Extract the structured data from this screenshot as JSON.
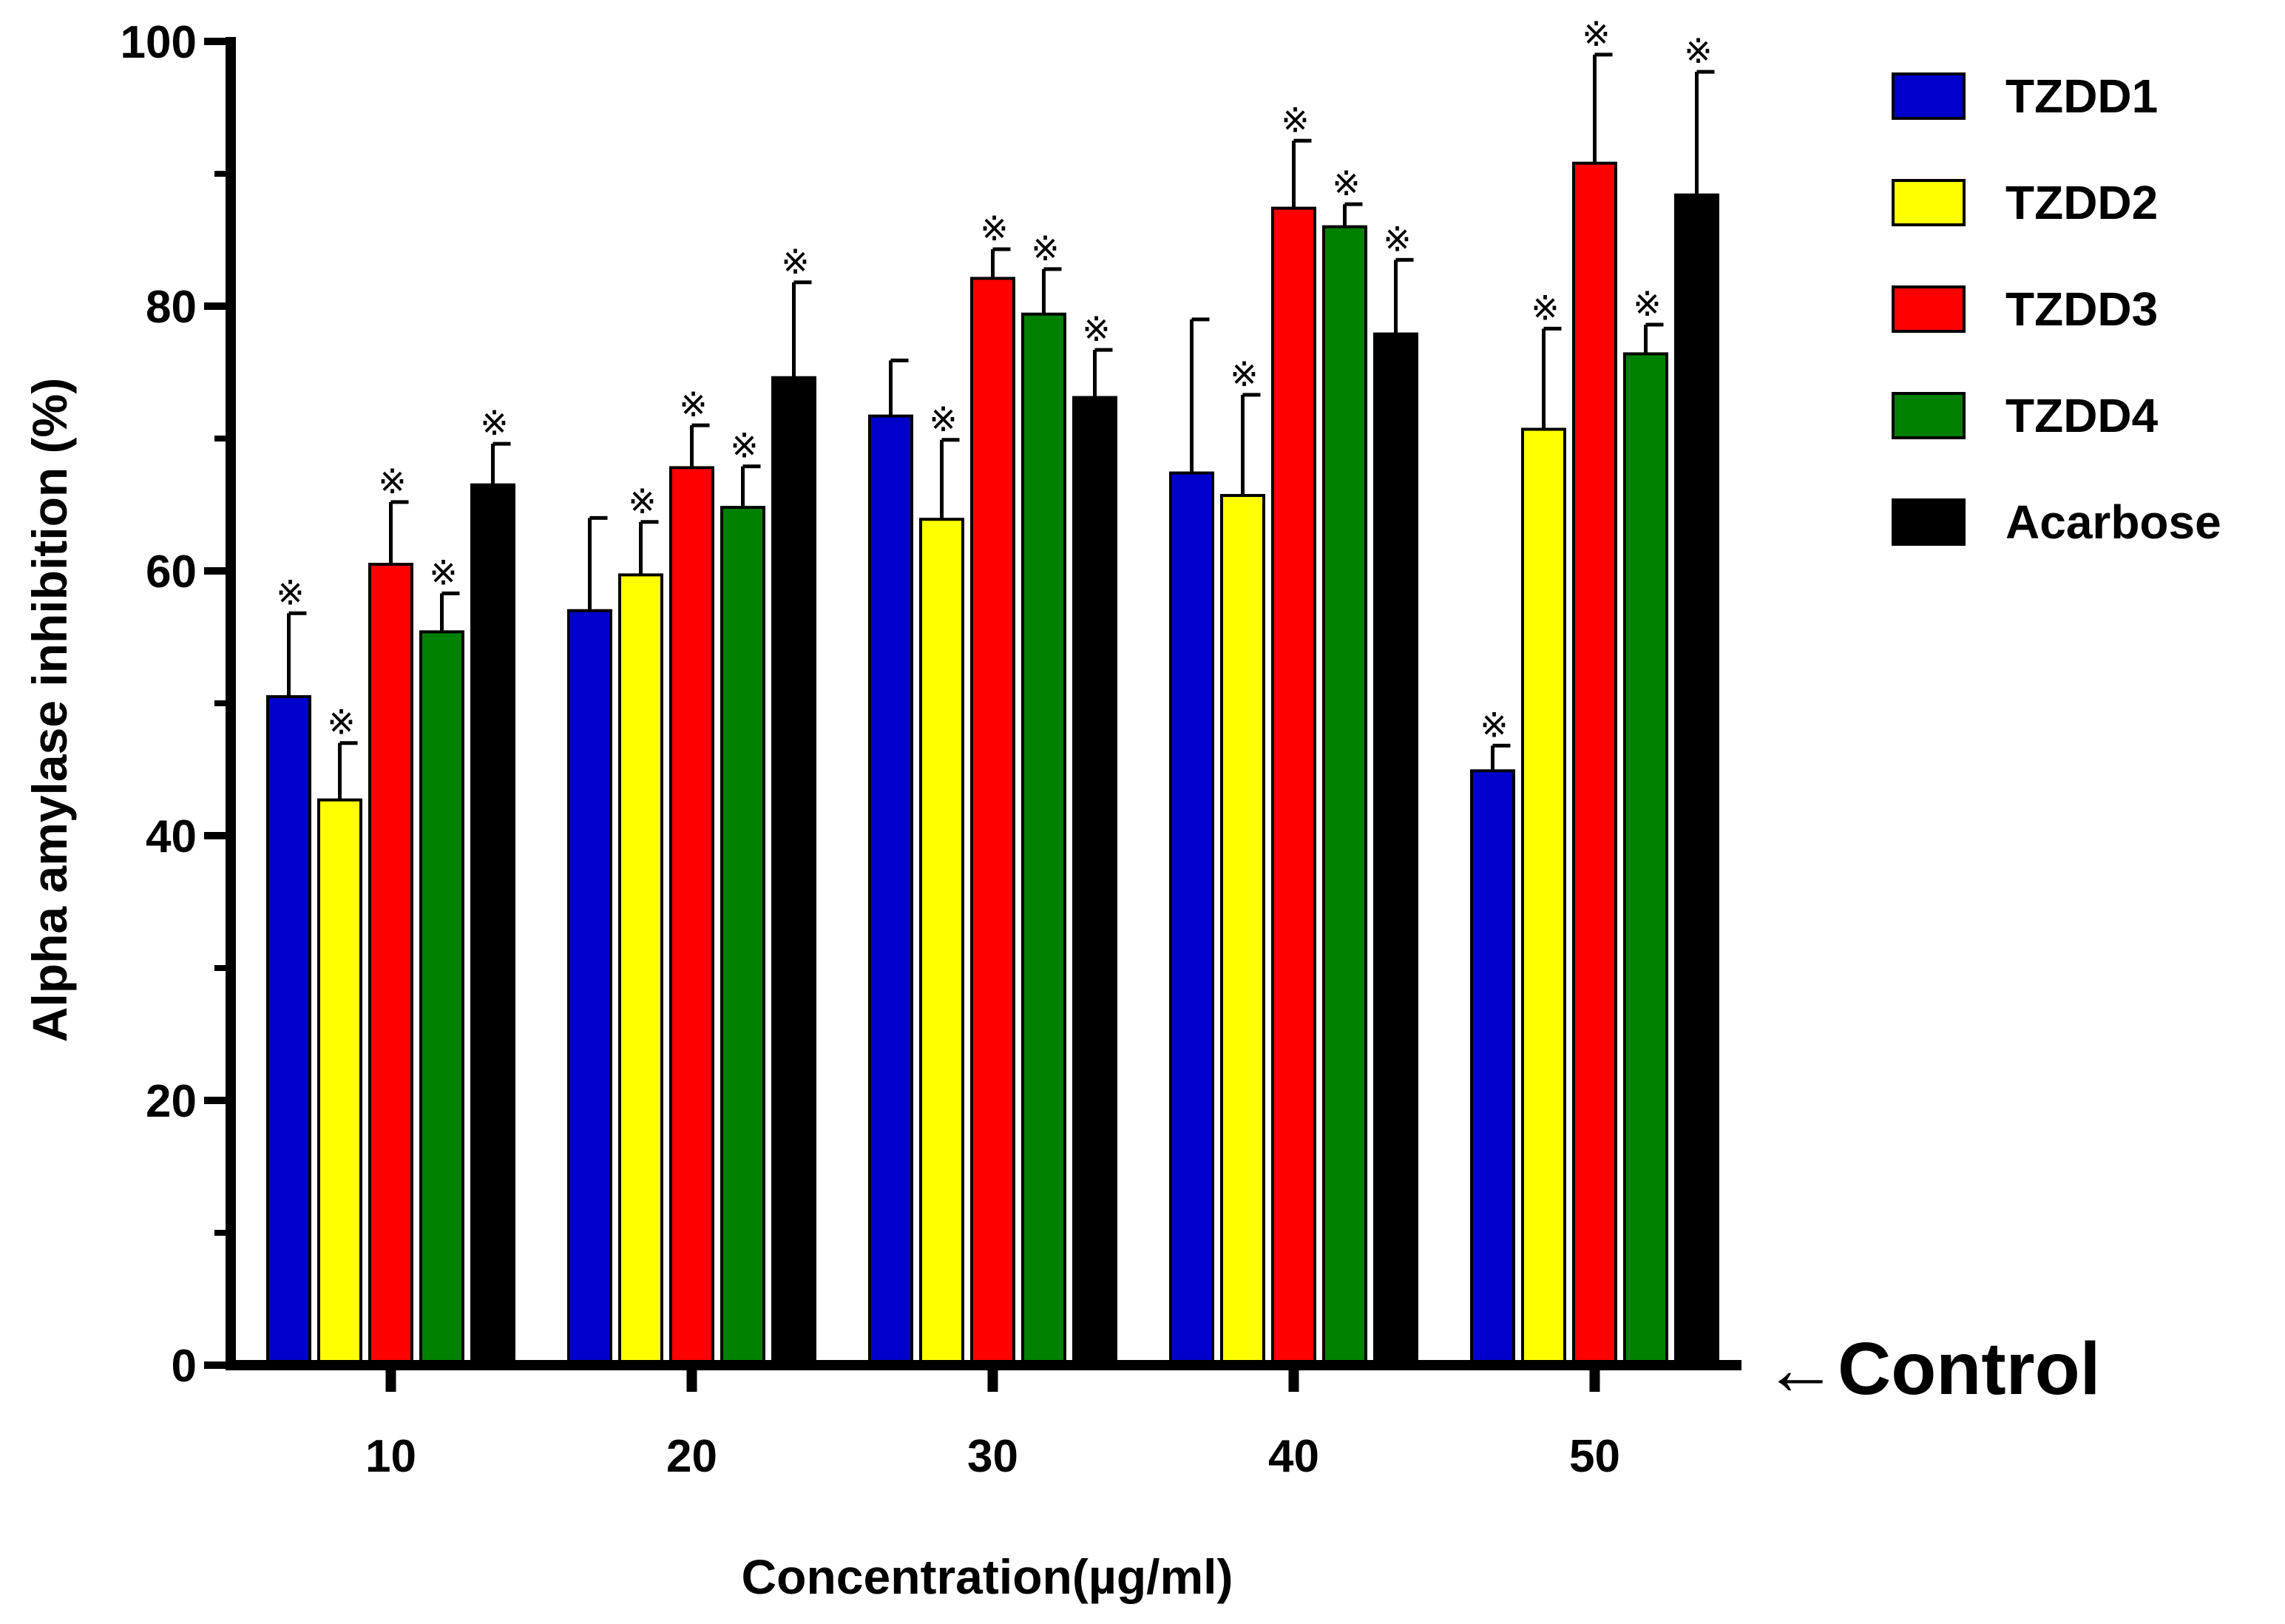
{
  "chart_data": {
    "type": "bar",
    "xlabel": "Concentration(µg/ml)",
    "ylabel": "Alpha amylase inhibition (%)",
    "ylim": [
      0,
      100
    ],
    "yticks": [
      0,
      20,
      40,
      60,
      80,
      100
    ],
    "categories": [
      "10",
      "20",
      "30",
      "40",
      "50"
    ],
    "legend_position": "top-right",
    "significance_marker": "※",
    "control_annotation": "←Control",
    "series": [
      {
        "name": "TZDD1",
        "color": "#0000cc",
        "values": [
          50.5,
          57.0,
          71.7,
          67.4,
          44.9
        ],
        "errors": [
          6.3,
          7.0,
          4.2,
          11.6,
          1.9
        ],
        "significant": [
          true,
          false,
          false,
          false,
          true
        ]
      },
      {
        "name": "TZDD2",
        "color": "#ffff00",
        "values": [
          42.7,
          59.7,
          63.9,
          65.7,
          70.7
        ],
        "errors": [
          4.3,
          4.0,
          6.0,
          7.6,
          7.6
        ],
        "significant": [
          true,
          true,
          true,
          true,
          true
        ]
      },
      {
        "name": "TZDD3",
        "color": "#ff0000",
        "values": [
          60.5,
          67.8,
          82.1,
          87.4,
          90.8
        ],
        "errors": [
          4.7,
          3.2,
          2.2,
          5.1,
          8.2
        ],
        "significant": [
          true,
          true,
          true,
          true,
          true
        ]
      },
      {
        "name": "TZDD4",
        "color": "#008000",
        "values": [
          55.4,
          64.8,
          79.4,
          86.0,
          76.4
        ],
        "errors": [
          2.9,
          3.1,
          3.4,
          1.7,
          2.2
        ],
        "significant": [
          true,
          true,
          true,
          true,
          true
        ]
      },
      {
        "name": "Acarbose",
        "color": "#000000",
        "values": [
          66.5,
          74.6,
          73.1,
          77.9,
          88.4
        ],
        "errors": [
          3.1,
          7.2,
          3.6,
          5.6,
          9.3
        ],
        "significant": [
          true,
          true,
          true,
          true,
          true
        ]
      }
    ]
  }
}
